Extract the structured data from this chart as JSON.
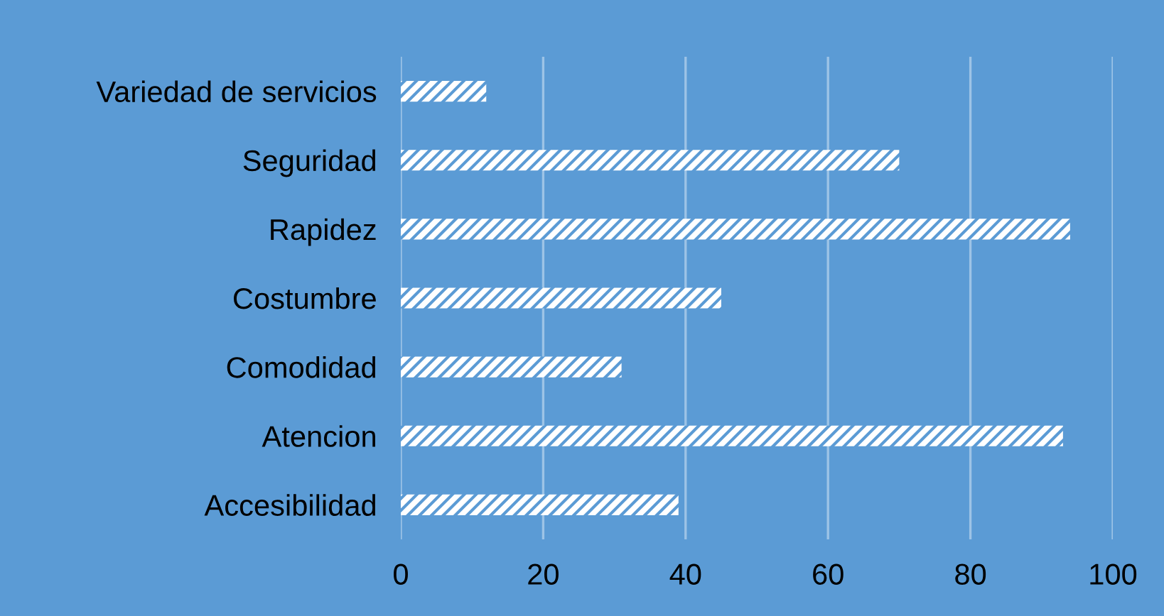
{
  "chart_data": {
    "type": "bar",
    "orientation": "horizontal",
    "categories": [
      "Variedad de servicios",
      "Seguridad",
      "Rapidez",
      "Costumbre",
      "Comodidad",
      "Atencion",
      "Accesibilidad"
    ],
    "values": [
      12,
      70,
      94,
      45,
      31,
      93,
      39
    ],
    "color": "#ffffff",
    "xlim": [
      0,
      100
    ],
    "xticks": [
      0,
      20,
      40,
      60,
      80,
      100
    ],
    "grid": "x",
    "legend": false
  }
}
